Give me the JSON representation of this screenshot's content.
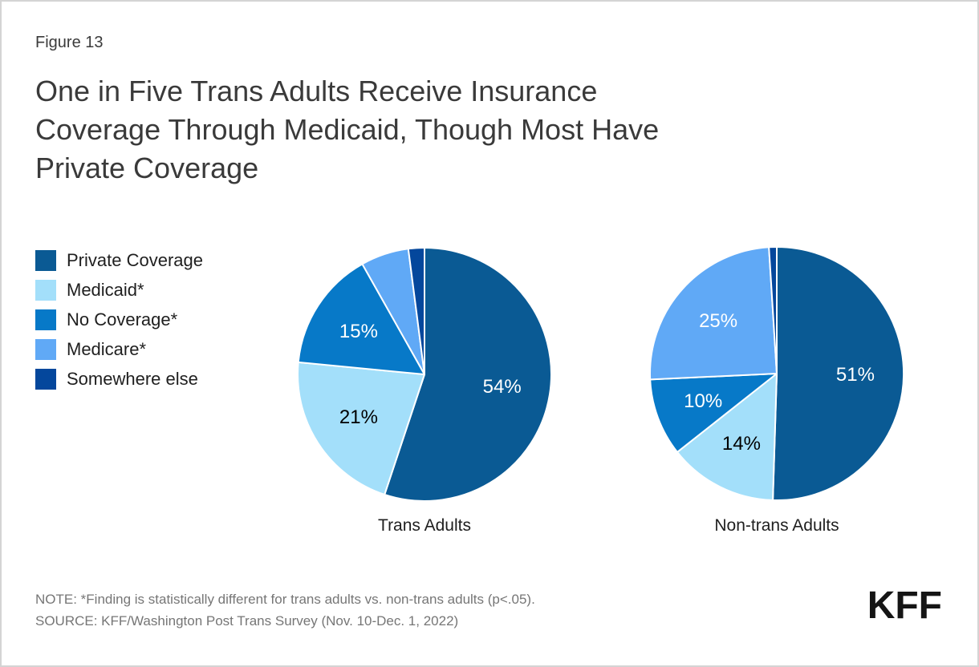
{
  "page": {
    "figure_label": "Figure 13",
    "title_lines": [
      "One in Five Trans Adults Receive Insurance",
      "Coverage Through Medicaid, Though Most Have",
      "Private Coverage"
    ],
    "note": "NOTE: *Finding is statistically different for trans adults vs. non-trans adults (p<.05).",
    "source": "SOURCE: KFF/Washington Post Trans Survey (Nov. 10-Dec. 1, 2022)",
    "logo_text": "KFF"
  },
  "chart_data": {
    "type": "pie",
    "title": "One in Five Trans Adults Receive Insurance Coverage Through Medicaid, Though Most Have Private Coverage",
    "figure_label": "Figure 13",
    "legend_position": "left",
    "categories": [
      "Private Coverage",
      "Medicaid*",
      "No Coverage*",
      "Medicare*",
      "Somewhere else"
    ],
    "colors": [
      "#0A5A94",
      "#A3DFFA",
      "#0779C8",
      "#60A9F6",
      "#04479C"
    ],
    "label_text_colors": [
      "#ffffff",
      "#000000",
      "#ffffff",
      "#ffffff",
      "#ffffff"
    ],
    "pies": [
      {
        "name": "Trans Adults",
        "values": [
          54,
          21,
          15,
          6,
          2
        ],
        "slice_labels": [
          "54%",
          "21%",
          "15%",
          "",
          ""
        ]
      },
      {
        "name": "Non-trans Adults",
        "values": [
          51,
          14,
          10,
          25,
          1
        ],
        "slice_labels": [
          "51%",
          "14%",
          "10%",
          "25%",
          ""
        ]
      }
    ],
    "start_angle_deg": 0,
    "direction": "clockwise",
    "note": "NOTE: *Finding is statistically different for trans adults vs. non-trans adults (p<.05).",
    "source": "SOURCE: KFF/Washington Post Trans Survey (Nov. 10-Dec. 1, 2022)"
  }
}
